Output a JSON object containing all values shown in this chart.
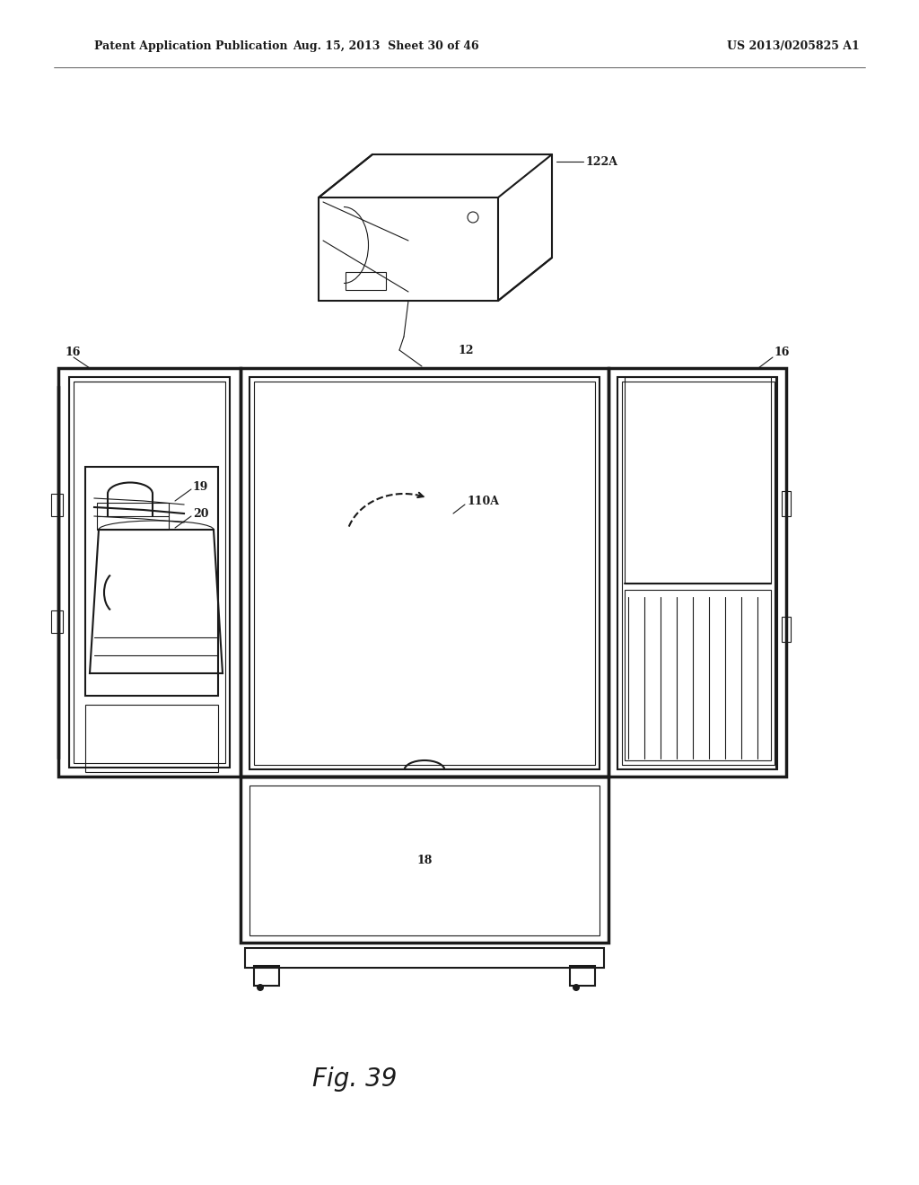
{
  "title_left": "Patent Application Publication",
  "title_center": "Aug. 15, 2013  Sheet 30 of 46",
  "title_right": "US 2013/0205825 A1",
  "fig_label": "Fig. 39",
  "bg_color": "#ffffff",
  "line_color": "#1a1a1a",
  "lw_main": 1.5,
  "lw_thin": 0.8,
  "lw_thick": 2.5
}
